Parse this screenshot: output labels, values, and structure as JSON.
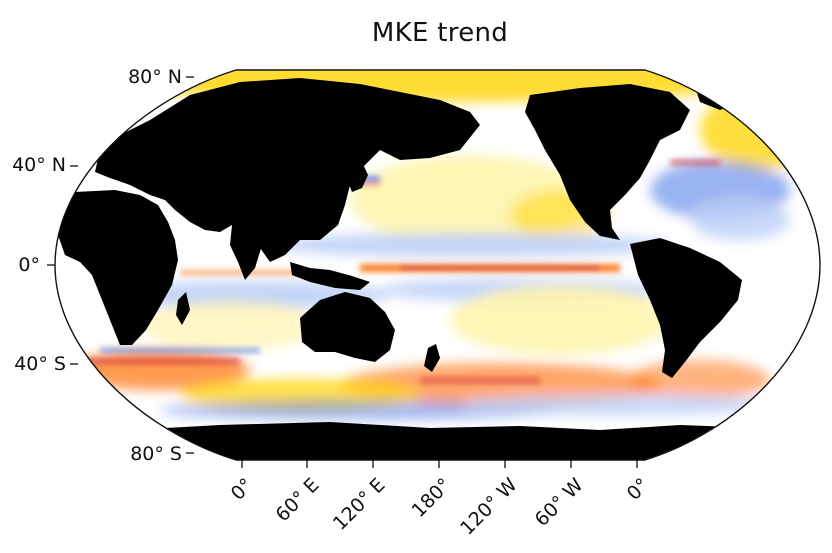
{
  "title": "MKE trend",
  "map": {
    "projection": "Robinson",
    "central_longitude": 180,
    "ocean_field": "MKE trend (diverging: blue = decrease, white = ~0, yellow/orange/red = increase)",
    "land_color": "#000000",
    "colors": {
      "strong_increase": "#c8102e",
      "increase": "#ff7a1a",
      "weak_increase": "#ffd400",
      "slight_increase": "#fff4a8",
      "neutral": "#ffffff",
      "slight_decrease": "#b9cdf6",
      "decrease": "#3b6fe8"
    }
  },
  "axes": {
    "lat_ticks": [
      "80° N",
      "40° N",
      "0°",
      "40° S",
      "80° S"
    ],
    "lon_ticks": [
      "0°",
      "60° E",
      "120° E",
      "180°",
      "120° W",
      "60° W",
      "0°"
    ]
  }
}
